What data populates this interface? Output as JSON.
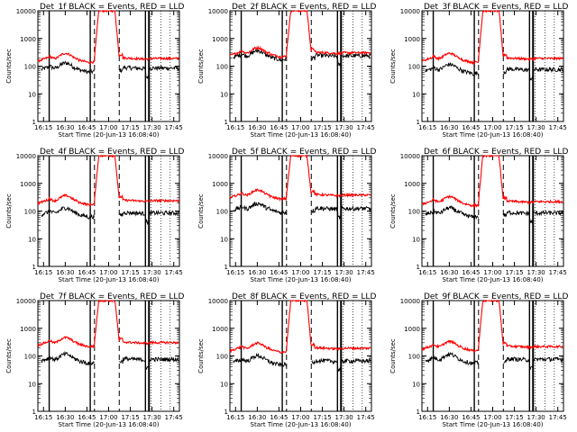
{
  "chart_data": {
    "type": "line",
    "y_scale": "log",
    "ylim": [
      1,
      10000
    ],
    "y_ticks": [
      {
        "value": 1,
        "label": "1"
      },
      {
        "value": 10,
        "label": "10"
      },
      {
        "value": 100,
        "label": "100"
      },
      {
        "value": 1000,
        "label": "1000"
      },
      {
        "value": 10000,
        "label": "10000"
      }
    ],
    "x_ticks": [
      "16:15",
      "16:30",
      "16:45",
      "17:00",
      "17:15",
      "17:30",
      "17:45"
    ],
    "xlabel": "Start Time (20-Jun-13 16:08:40)",
    "ylabel": "Counts/sec",
    "colors": {
      "events": "#000000",
      "lld": "#ff0000"
    },
    "panels": [
      {
        "title": "Det_1f BLACK = Events, RED = LLD",
        "red_level": 200,
        "black_level": 90,
        "red_peak": 10000
      },
      {
        "title": "Det_2f BLACK = Events, RED = LLD",
        "red_level": 320,
        "black_level": 250,
        "red_peak": 10000
      },
      {
        "title": "Det_3f BLACK = Events, RED = LLD",
        "red_level": 200,
        "black_level": 80,
        "red_peak": 10000
      },
      {
        "title": "Det_4f BLACK = Events, RED = LLD",
        "red_level": 250,
        "black_level": 90,
        "red_peak": 10000
      },
      {
        "title": "Det_5f BLACK = Events, RED = LLD",
        "red_level": 400,
        "black_level": 130,
        "red_peak": 10000
      },
      {
        "title": "Det_6f BLACK = Events, RED = LLD",
        "red_level": 230,
        "black_level": 90,
        "red_peak": 10000
      },
      {
        "title": "Det_7f BLACK = Events, RED = LLD",
        "red_level": 320,
        "black_level": 80,
        "red_peak": 10000
      },
      {
        "title": "Det_8f BLACK = Events, RED = LLD",
        "red_level": 200,
        "black_level": 70,
        "red_peak": 10000
      },
      {
        "title": "Det_9f BLACK = Events, RED = LLD",
        "red_level": 230,
        "black_level": 80,
        "red_peak": 10000
      }
    ]
  }
}
